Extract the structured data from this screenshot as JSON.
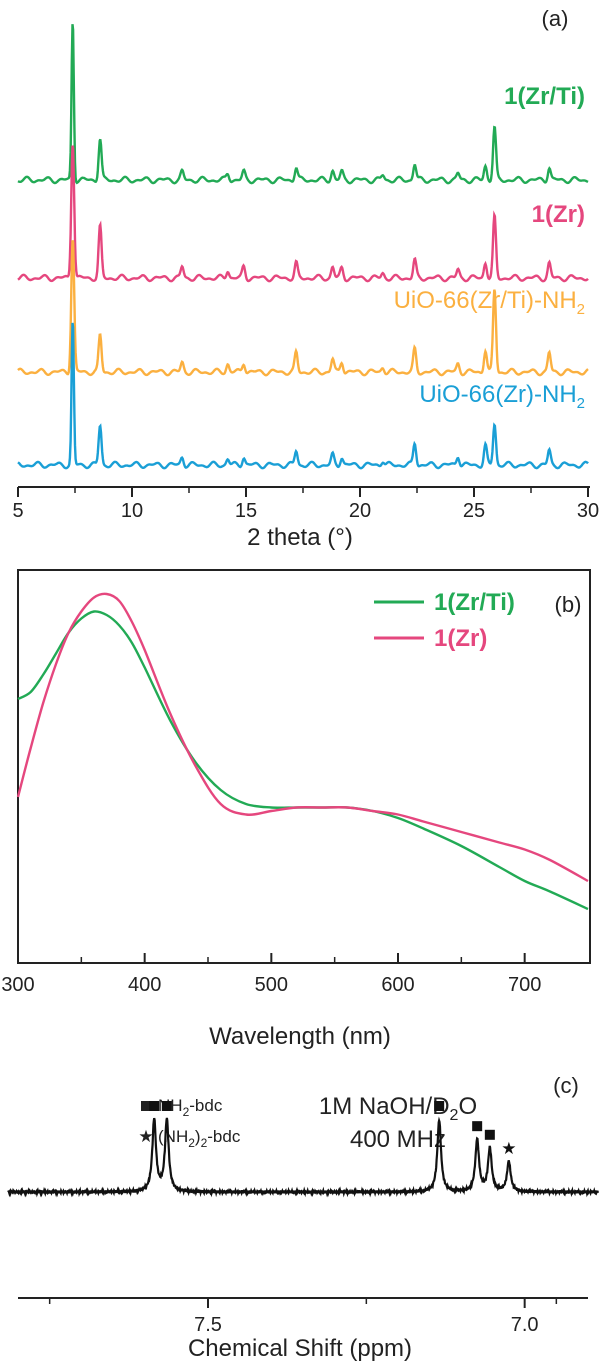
{
  "chart_data": [
    {
      "type": "line",
      "panel": "(a)",
      "xlabel": "2 theta (°)",
      "xlim": [
        5,
        30
      ],
      "xticks": [
        "5",
        "10",
        "15",
        "20",
        "25",
        "30"
      ],
      "ylabel": "",
      "stacked_offset": true,
      "series": [
        {
          "name": "1(Zr/Ti)",
          "color": "#22aa55",
          "label_bold": true,
          "peaks": [
            [
              7.4,
              100
            ],
            [
              8.6,
              26
            ],
            [
              12.2,
              5
            ],
            [
              14.2,
              4
            ],
            [
              14.9,
              5
            ],
            [
              17.2,
              8
            ],
            [
              18.8,
              6
            ],
            [
              19.2,
              5
            ],
            [
              21.0,
              3
            ],
            [
              22.4,
              10
            ],
            [
              24.3,
              4
            ],
            [
              25.5,
              9
            ],
            [
              25.9,
              33
            ],
            [
              28.3,
              8
            ]
          ]
        },
        {
          "name": "1(Zr)",
          "color": "#e5477e",
          "label_bold": true,
          "peaks": [
            [
              7.4,
              86
            ],
            [
              8.6,
              32
            ],
            [
              12.2,
              7
            ],
            [
              14.2,
              5
            ],
            [
              14.9,
              7
            ],
            [
              17.2,
              9
            ],
            [
              18.8,
              7
            ],
            [
              19.2,
              6
            ],
            [
              21.0,
              3
            ],
            [
              22.4,
              11
            ],
            [
              24.3,
              5
            ],
            [
              25.5,
              10
            ],
            [
              25.9,
              38
            ],
            [
              28.3,
              9
            ]
          ]
        },
        {
          "name": "UiO-66(Zr/Ti)-NH2",
          "color": "#fbb040",
          "label_bold": false,
          "peaks": [
            [
              7.4,
              84
            ],
            [
              8.6,
              23
            ],
            [
              12.2,
              6
            ],
            [
              14.2,
              5
            ],
            [
              14.9,
              6
            ],
            [
              17.2,
              12
            ],
            [
              18.8,
              8
            ],
            [
              19.2,
              7
            ],
            [
              21.0,
              3
            ],
            [
              22.4,
              14
            ],
            [
              24.3,
              5
            ],
            [
              25.5,
              14
            ],
            [
              25.9,
              52
            ],
            [
              28.3,
              12
            ]
          ]
        },
        {
          "name": "UiO-66(Zr)-NH2",
          "color": "#1a9fd6",
          "label_bold": false,
          "peaks": [
            [
              7.4,
              90
            ],
            [
              8.6,
              25
            ],
            [
              12.2,
              5
            ],
            [
              14.2,
              4
            ],
            [
              14.9,
              5
            ],
            [
              17.2,
              9
            ],
            [
              18.8,
              6
            ],
            [
              19.2,
              5
            ],
            [
              21.0,
              3
            ],
            [
              22.4,
              14
            ],
            [
              24.3,
              6
            ],
            [
              25.5,
              12
            ],
            [
              25.9,
              26
            ],
            [
              28.3,
              9
            ]
          ]
        }
      ]
    },
    {
      "type": "line",
      "panel": "(b)",
      "xlabel": "Wavelength (nm)",
      "ylabel": "",
      "xlim": [
        300,
        750
      ],
      "xticks": [
        "300",
        "400",
        "500",
        "600",
        "700"
      ],
      "ylim": [
        0,
        1
      ],
      "legend_position": "top-right",
      "series": [
        {
          "name": "1(Zr/Ti)",
          "color": "#22aa55",
          "x": [
            300,
            310,
            320,
            330,
            340,
            350,
            360,
            370,
            380,
            390,
            400,
            420,
            440,
            460,
            480,
            500,
            520,
            540,
            560,
            580,
            600,
            620,
            650,
            680,
            700,
            720,
            750
          ],
          "y": [
            0.66,
            0.68,
            0.73,
            0.79,
            0.85,
            0.89,
            0.91,
            0.9,
            0.87,
            0.82,
            0.75,
            0.6,
            0.48,
            0.4,
            0.36,
            0.35,
            0.35,
            0.35,
            0.35,
            0.34,
            0.32,
            0.29,
            0.24,
            0.18,
            0.14,
            0.11,
            0.06
          ]
        },
        {
          "name": "1(Zr)",
          "color": "#e5477e",
          "x": [
            300,
            310,
            320,
            330,
            340,
            350,
            360,
            370,
            380,
            390,
            400,
            420,
            440,
            460,
            480,
            500,
            520,
            540,
            560,
            580,
            600,
            620,
            650,
            680,
            700,
            720,
            750
          ],
          "y": [
            0.38,
            0.52,
            0.65,
            0.76,
            0.85,
            0.91,
            0.95,
            0.96,
            0.94,
            0.88,
            0.8,
            0.62,
            0.47,
            0.36,
            0.33,
            0.34,
            0.35,
            0.35,
            0.35,
            0.34,
            0.33,
            0.31,
            0.28,
            0.25,
            0.23,
            0.2,
            0.14
          ]
        }
      ]
    },
    {
      "type": "line",
      "panel": "(c)",
      "xlabel": "Chemical Shift (ppm)",
      "xlim": [
        7.8,
        6.9
      ],
      "xticks": [
        "7.5",
        "7.0"
      ],
      "annotation_lines": [
        "1M NaOH/D",
        "400 MHz"
      ],
      "legend": [
        {
          "symbol": "square",
          "label": "NH",
          "sub": "2",
          "suffix": "-bdc"
        },
        {
          "symbol": "star",
          "label": "(NH",
          "sub": "2",
          "suffix": ")",
          "sub2": "2",
          "suffix2": "-bdc"
        }
      ],
      "solvent_sub": "2",
      "solvent_suffix": "O",
      "series": [
        {
          "name": "",
          "color": "#111111",
          "peaks": [
            {
              "ppm": 7.585,
              "height": 1.0,
              "marker": "square"
            },
            {
              "ppm": 7.565,
              "height": 1.0,
              "marker": "square"
            },
            {
              "ppm": 7.135,
              "height": 1.0,
              "marker": "square"
            },
            {
              "ppm": 7.075,
              "height": 0.72,
              "marker": "square"
            },
            {
              "ppm": 7.055,
              "height": 0.6,
              "marker": "square"
            },
            {
              "ppm": 7.025,
              "height": 0.42,
              "marker": "star"
            }
          ]
        }
      ]
    }
  ],
  "panel_labels": [
    "(a)",
    "(b)",
    "(c)"
  ]
}
